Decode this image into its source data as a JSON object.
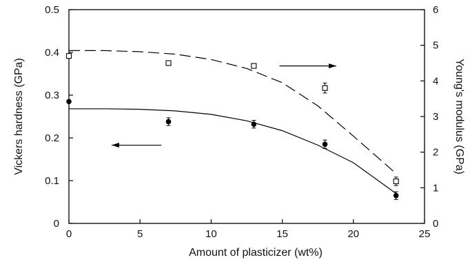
{
  "chart_data": {
    "type": "scatter",
    "xlabel": "Amount of plasticizer (wt%)",
    "ylabel_left": "Vickers hardness (GPa)",
    "ylabel_right": "Young's modulus (GPa)",
    "xlim": [
      0,
      25
    ],
    "ylim_left": [
      0,
      0.5
    ],
    "ylim_right": [
      0,
      6
    ],
    "x_ticks": [
      "0",
      "5",
      "10",
      "15",
      "20",
      "25"
    ],
    "y_left_ticks": [
      "0",
      "0.1",
      "0.2",
      "0.3",
      "0.4",
      "0.5"
    ],
    "y_right_ticks": [
      "0",
      "1",
      "2",
      "3",
      "4",
      "5",
      "6"
    ],
    "grid": false,
    "series": [
      {
        "axis": "left",
        "marker": "filled-circle",
        "x": [
          0,
          7,
          13,
          18,
          23
        ],
        "y": [
          0.285,
          0.238,
          0.232,
          0.185,
          0.065
        ],
        "err": [
          0,
          0.009,
          0.009,
          0.01,
          0.009
        ],
        "fit_line": "solid",
        "fit_x": [
          0,
          2.5,
          5,
          7.5,
          10,
          12.5,
          15,
          17.5,
          20,
          23
        ],
        "fit_y": [
          0.268,
          0.268,
          0.267,
          0.263,
          0.255,
          0.24,
          0.217,
          0.183,
          0.142,
          0.07
        ]
      },
      {
        "axis": "right",
        "marker": "open-square",
        "x": [
          0,
          7,
          13,
          18,
          23
        ],
        "y": [
          4.7,
          4.5,
          4.42,
          3.8,
          1.18
        ],
        "err": [
          0,
          0,
          0,
          0.14,
          0.12
        ],
        "fit_line": "dashed",
        "fit_x": [
          0,
          2.5,
          5,
          7.5,
          10,
          12.5,
          15,
          17.5,
          20,
          23
        ],
        "fit_y": [
          4.85,
          4.85,
          4.82,
          4.75,
          4.6,
          4.35,
          3.95,
          3.3,
          2.45,
          1.4
        ]
      }
    ],
    "annotations": [
      {
        "type": "arrow",
        "direction": "left",
        "x_from": 6.5,
        "x_to": 3.0,
        "axis": "left",
        "y": 0.183
      },
      {
        "type": "arrow",
        "direction": "right",
        "x_from": 14.8,
        "x_to": 18.8,
        "axis": "right",
        "y": 4.42
      }
    ]
  }
}
